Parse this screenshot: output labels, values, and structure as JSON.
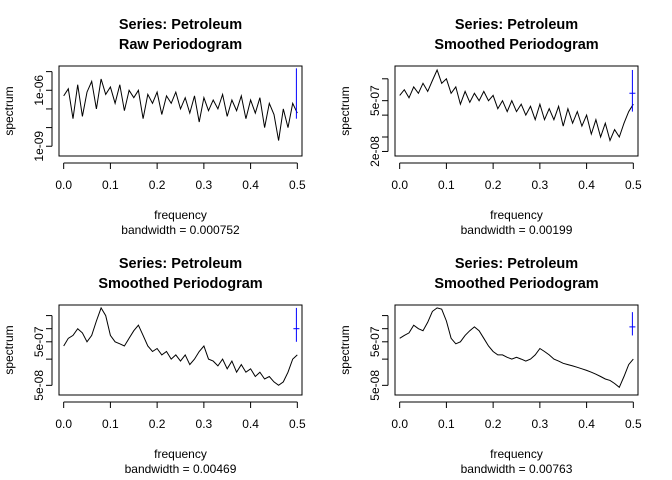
{
  "chart_data": [
    {
      "type": "line",
      "title": "Series: Petroleum",
      "subtitle": "Raw Periodogram",
      "xlabel": "frequency",
      "xlabel2": "bandwidth = 0.000752",
      "ylabel": "spectrum",
      "ylog": true,
      "xlim": [
        -0.01,
        0.51
      ],
      "ylim": [
        3e-10,
        2e-05
      ],
      "xticks": [
        {
          "value": 0.0,
          "label": "0.0"
        },
        {
          "value": 0.1,
          "label": "0.1"
        },
        {
          "value": 0.2,
          "label": "0.2"
        },
        {
          "value": 0.3,
          "label": "0.3"
        },
        {
          "value": 0.4,
          "label": "0.4"
        },
        {
          "value": 0.5,
          "label": "0.5"
        }
      ],
      "yticks": [
        {
          "value": 1e-09,
          "label": "1e-09",
          "labeled": true
        },
        {
          "value": 1e-08,
          "label": "",
          "labeled": false
        },
        {
          "value": 1e-07,
          "label": "",
          "labeled": false
        },
        {
          "value": 1e-06,
          "label": "1e-06",
          "labeled": true
        },
        {
          "value": 1e-05,
          "label": "",
          "labeled": false
        }
      ],
      "x": [
        0.0,
        0.01,
        0.02,
        0.03,
        0.04,
        0.05,
        0.06,
        0.07,
        0.08,
        0.09,
        0.1,
        0.11,
        0.12,
        0.13,
        0.14,
        0.15,
        0.16,
        0.17,
        0.18,
        0.19,
        0.2,
        0.21,
        0.22,
        0.23,
        0.24,
        0.25,
        0.26,
        0.27,
        0.28,
        0.29,
        0.3,
        0.31,
        0.32,
        0.33,
        0.34,
        0.35,
        0.36,
        0.37,
        0.38,
        0.39,
        0.4,
        0.41,
        0.42,
        0.43,
        0.44,
        0.45,
        0.46,
        0.47,
        0.48,
        0.49,
        0.5
      ],
      "series": [
        {
          "values": [
            5e-07,
            1.2e-06,
            3e-08,
            2e-06,
            4e-08,
            8e-07,
            3e-06,
            1e-07,
            4e-06,
            6e-07,
            1.5e-06,
            2e-07,
            2e-06,
            8e-08,
            1e-06,
            4e-07,
            1e-06,
            3e-08,
            6e-07,
            2e-07,
            8e-07,
            5e-08,
            5e-07,
            2e-07,
            8e-07,
            1e-07,
            4e-07,
            6e-08,
            5e-07,
            2e-08,
            4e-07,
            8e-08,
            3e-07,
            1e-07,
            6e-07,
            4e-08,
            3e-07,
            8e-08,
            5e-07,
            3e-08,
            3e-07,
            6e-08,
            4e-07,
            1e-08,
            2e-07,
            5e-08,
            2e-09,
            1e-07,
            1e-08,
            2e-07,
            6e-08
          ]
        }
      ],
      "ci_bar": {
        "x": 0.498,
        "center": 2e-07,
        "low": 3e-08,
        "high": 1.5e-05,
        "mark": false
      }
    },
    {
      "type": "line",
      "title": "Series: Petroleum",
      "subtitle": "Smoothed Periodogram",
      "xlabel": "frequency",
      "xlabel2": "bandwidth = 0.00199",
      "ylabel": "spectrum",
      "ylog": true,
      "xlim": [
        -0.01,
        0.51
      ],
      "ylim": [
        1.5e-08,
        4.5e-06
      ],
      "xticks": [
        {
          "value": 0.0,
          "label": "0.0"
        },
        {
          "value": 0.1,
          "label": "0.1"
        },
        {
          "value": 0.2,
          "label": "0.2"
        },
        {
          "value": 0.3,
          "label": "0.3"
        },
        {
          "value": 0.4,
          "label": "0.4"
        },
        {
          "value": 0.5,
          "label": "0.5"
        }
      ],
      "yticks": [
        {
          "value": 2e-08,
          "label": "2e-08",
          "labeled": true
        },
        {
          "value": 5e-08,
          "label": "",
          "labeled": false
        },
        {
          "value": 2e-07,
          "label": "",
          "labeled": false
        },
        {
          "value": 5e-07,
          "label": "5e-07",
          "labeled": true
        },
        {
          "value": 2e-06,
          "label": "",
          "labeled": false
        }
      ],
      "x": [
        0.0,
        0.01,
        0.02,
        0.03,
        0.04,
        0.05,
        0.06,
        0.07,
        0.08,
        0.09,
        0.1,
        0.11,
        0.12,
        0.13,
        0.14,
        0.15,
        0.16,
        0.17,
        0.18,
        0.19,
        0.2,
        0.21,
        0.22,
        0.23,
        0.24,
        0.25,
        0.26,
        0.27,
        0.28,
        0.29,
        0.3,
        0.31,
        0.32,
        0.33,
        0.34,
        0.35,
        0.36,
        0.37,
        0.38,
        0.39,
        0.4,
        0.41,
        0.42,
        0.43,
        0.44,
        0.45,
        0.46,
        0.47,
        0.48,
        0.49,
        0.5
      ],
      "series": [
        {
          "values": [
            7e-07,
            1e-06,
            6e-07,
            1.2e-06,
            8e-07,
            1.5e-06,
            9e-07,
            1.8e-06,
            3.5e-06,
            1.5e-06,
            2e-06,
            8e-07,
            1.2e-06,
            4e-07,
            9e-07,
            4.5e-07,
            8e-07,
            5e-07,
            9e-07,
            5e-07,
            7e-07,
            3e-07,
            5e-07,
            2.5e-07,
            5e-07,
            2.5e-07,
            4e-07,
            2e-07,
            3.5e-07,
            1.5e-07,
            4e-07,
            1.5e-07,
            3e-07,
            1.5e-07,
            3.5e-07,
            1e-07,
            3e-07,
            1.2e-07,
            2.5e-07,
            1e-07,
            2e-07,
            6e-08,
            1.5e-07,
            5e-08,
            1.2e-07,
            4e-08,
            8e-08,
            5e-08,
            1.2e-07,
            2.5e-07,
            4e-07
          ]
        }
      ],
      "ci_bar": {
        "x": 0.498,
        "center": 8e-07,
        "low": 2.5e-07,
        "high": 3.5e-06,
        "mark": true
      }
    },
    {
      "type": "line",
      "title": "Series: Petroleum",
      "subtitle": "Smoothed Periodogram",
      "xlabel": "frequency",
      "xlabel2": "bandwidth = 0.00469",
      "ylabel": "spectrum",
      "ylog": true,
      "xlim": [
        -0.01,
        0.51
      ],
      "ylim": [
        3e-08,
        3.5e-06
      ],
      "xticks": [
        {
          "value": 0.0,
          "label": "0.0"
        },
        {
          "value": 0.1,
          "label": "0.1"
        },
        {
          "value": 0.2,
          "label": "0.2"
        },
        {
          "value": 0.3,
          "label": "0.3"
        },
        {
          "value": 0.4,
          "label": "0.4"
        },
        {
          "value": 0.5,
          "label": "0.5"
        }
      ],
      "yticks": [
        {
          "value": 5e-08,
          "label": "5e-08",
          "labeled": true
        },
        {
          "value": 2e-07,
          "label": "",
          "labeled": false
        },
        {
          "value": 5e-07,
          "label": "5e-07",
          "labeled": true
        },
        {
          "value": 1e-06,
          "label": "",
          "labeled": false
        },
        {
          "value": 2e-06,
          "label": "",
          "labeled": false
        }
      ],
      "x": [
        0.0,
        0.01,
        0.02,
        0.03,
        0.04,
        0.05,
        0.06,
        0.07,
        0.08,
        0.09,
        0.1,
        0.11,
        0.12,
        0.13,
        0.14,
        0.15,
        0.16,
        0.17,
        0.18,
        0.19,
        0.2,
        0.21,
        0.22,
        0.23,
        0.24,
        0.25,
        0.26,
        0.27,
        0.28,
        0.29,
        0.3,
        0.31,
        0.32,
        0.33,
        0.34,
        0.35,
        0.36,
        0.37,
        0.38,
        0.39,
        0.4,
        0.41,
        0.42,
        0.43,
        0.44,
        0.45,
        0.46,
        0.47,
        0.48,
        0.49,
        0.5
      ],
      "series": [
        {
          "values": [
            4e-07,
            6e-07,
            7e-07,
            1e-06,
            8e-07,
            5e-07,
            7e-07,
            1.5e-06,
            3e-06,
            2e-06,
            7e-07,
            5e-07,
            4.5e-07,
            4e-07,
            6e-07,
            9e-07,
            1.2e-06,
            7e-07,
            4e-07,
            3e-07,
            3.5e-07,
            2.5e-07,
            3e-07,
            2e-07,
            2.5e-07,
            1.8e-07,
            2.5e-07,
            1.5e-07,
            2e-07,
            3e-07,
            4e-07,
            2e-07,
            1.8e-07,
            1.4e-07,
            2e-07,
            1.2e-07,
            1.8e-07,
            1e-07,
            1.5e-07,
            1e-07,
            1.2e-07,
            8e-08,
            1e-07,
            7e-08,
            8e-08,
            6e-08,
            5e-08,
            6e-08,
            1e-07,
            2e-07,
            2.5e-07
          ]
        }
      ],
      "ci_bar": {
        "x": 0.498,
        "center": 1e-06,
        "low": 5e-07,
        "high": 3e-06,
        "mark": true
      }
    },
    {
      "type": "line",
      "title": "Series: Petroleum",
      "subtitle": "Smoothed Periodogram",
      "xlabel": "frequency",
      "xlabel2": "bandwidth = 0.00763",
      "ylabel": "spectrum",
      "ylog": true,
      "xlim": [
        -0.01,
        0.51
      ],
      "ylim": [
        3e-08,
        3.5e-06
      ],
      "xticks": [
        {
          "value": 0.0,
          "label": "0.0"
        },
        {
          "value": 0.1,
          "label": "0.1"
        },
        {
          "value": 0.2,
          "label": "0.2"
        },
        {
          "value": 0.3,
          "label": "0.3"
        },
        {
          "value": 0.4,
          "label": "0.4"
        },
        {
          "value": 0.5,
          "label": "0.5"
        }
      ],
      "yticks": [
        {
          "value": 5e-08,
          "label": "5e-08",
          "labeled": true
        },
        {
          "value": 2e-07,
          "label": "",
          "labeled": false
        },
        {
          "value": 5e-07,
          "label": "5e-07",
          "labeled": true
        },
        {
          "value": 1e-06,
          "label": "",
          "labeled": false
        },
        {
          "value": 2e-06,
          "label": "",
          "labeled": false
        }
      ],
      "x": [
        0.0,
        0.01,
        0.02,
        0.03,
        0.04,
        0.05,
        0.06,
        0.07,
        0.08,
        0.09,
        0.1,
        0.11,
        0.12,
        0.13,
        0.14,
        0.15,
        0.16,
        0.17,
        0.18,
        0.19,
        0.2,
        0.21,
        0.22,
        0.23,
        0.24,
        0.25,
        0.26,
        0.27,
        0.28,
        0.29,
        0.3,
        0.31,
        0.32,
        0.33,
        0.34,
        0.35,
        0.36,
        0.37,
        0.38,
        0.39,
        0.4,
        0.41,
        0.42,
        0.43,
        0.44,
        0.45,
        0.46,
        0.47,
        0.48,
        0.49,
        0.5
      ],
      "series": [
        {
          "values": [
            6e-07,
            7e-07,
            8e-07,
            1.2e-06,
            1e-06,
            9e-07,
            1.4e-06,
            2.5e-06,
            3e-06,
            2.8e-06,
            1.5e-06,
            6e-07,
            4.5e-07,
            5e-07,
            7e-07,
            9e-07,
            1.1e-06,
            9e-07,
            6e-07,
            4e-07,
            3e-07,
            2.5e-07,
            2.5e-07,
            2.2e-07,
            2e-07,
            2.2e-07,
            2e-07,
            1.8e-07,
            2e-07,
            2.5e-07,
            3.5e-07,
            3e-07,
            2.5e-07,
            2e-07,
            1.8e-07,
            1.6e-07,
            1.5e-07,
            1.4e-07,
            1.3e-07,
            1.2e-07,
            1.1e-07,
            1e-07,
            9e-08,
            8e-08,
            7e-08,
            6.5e-08,
            5.5e-08,
            4.5e-08,
            8e-08,
            1.5e-07,
            2e-07
          ]
        }
      ],
      "ci_bar": {
        "x": 0.498,
        "center": 1.1e-06,
        "low": 7e-07,
        "high": 2.4e-06,
        "mark": true
      }
    }
  ]
}
